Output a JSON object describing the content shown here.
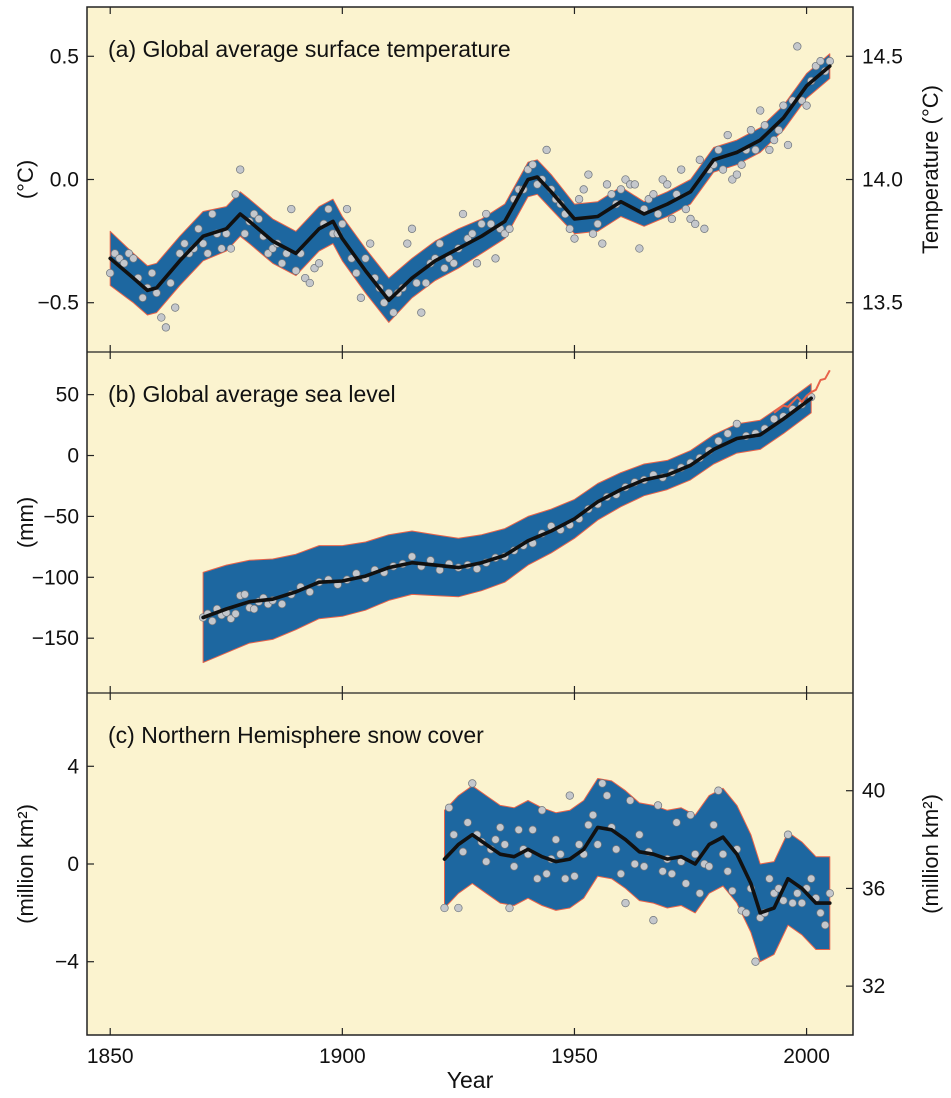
{
  "figure": {
    "xlabel": "Year",
    "x_ticks": [
      1850,
      1900,
      1950,
      2000
    ],
    "xlim": [
      1845,
      2010
    ],
    "colors": {
      "panel_bg": "#fbf3cf",
      "band_fill": "#1d67a0",
      "band_edge": "#e8634a",
      "smooth_line": "#111111",
      "points": "#c4c7cc",
      "satellite_line": "#e8634a"
    }
  },
  "chart_data": [
    {
      "type": "line",
      "title": "(a) Global average surface temperature",
      "ylabel": "(°C)",
      "ylabel_right": "Temperature (°C)",
      "ylim": [
        -0.7,
        0.7
      ],
      "y_ticks": [
        -0.5,
        0.0,
        0.5
      ],
      "y_tick_labels": [
        "−0.5",
        "0.0",
        "0.5"
      ],
      "right_ticks": [
        13.5,
        14.0,
        14.5
      ],
      "right_tick_labels": [
        "13.5",
        "14.0",
        "14.5"
      ],
      "right_offset": 14.0,
      "smooth_x": [
        1850,
        1855,
        1858,
        1860,
        1865,
        1870,
        1875,
        1878,
        1880,
        1885,
        1890,
        1895,
        1898,
        1900,
        1905,
        1910,
        1915,
        1920,
        1925,
        1930,
        1935,
        1940,
        1942,
        1945,
        1950,
        1955,
        1960,
        1965,
        1970,
        1975,
        1980,
        1985,
        1990,
        1995,
        2000,
        2005
      ],
      "smooth_y": [
        -0.32,
        -0.4,
        -0.45,
        -0.44,
        -0.33,
        -0.23,
        -0.2,
        -0.14,
        -0.17,
        -0.25,
        -0.3,
        -0.2,
        -0.17,
        -0.24,
        -0.37,
        -0.49,
        -0.4,
        -0.33,
        -0.28,
        -0.23,
        -0.17,
        0.0,
        0.01,
        -0.05,
        -0.16,
        -0.15,
        -0.09,
        -0.14,
        -0.1,
        -0.05,
        0.08,
        0.11,
        0.16,
        0.25,
        0.38,
        0.46
      ],
      "band_halfwidth": [
        0.11,
        0.1,
        0.1,
        0.1,
        0.1,
        0.1,
        0.09,
        0.09,
        0.09,
        0.09,
        0.09,
        0.09,
        0.09,
        0.09,
        0.09,
        0.09,
        0.08,
        0.08,
        0.08,
        0.07,
        0.07,
        0.07,
        0.07,
        0.07,
        0.06,
        0.06,
        0.06,
        0.05,
        0.05,
        0.05,
        0.05,
        0.05,
        0.05,
        0.05,
        0.05,
        0.05
      ],
      "points_x": [
        1850,
        1851,
        1852,
        1853,
        1854,
        1855,
        1856,
        1857,
        1858,
        1859,
        1860,
        1861,
        1862,
        1863,
        1864,
        1865,
        1866,
        1867,
        1868,
        1869,
        1870,
        1871,
        1872,
        1873,
        1874,
        1875,
        1876,
        1877,
        1878,
        1879,
        1880,
        1881,
        1882,
        1883,
        1884,
        1885,
        1886,
        1887,
        1888,
        1889,
        1890,
        1891,
        1892,
        1893,
        1894,
        1895,
        1896,
        1897,
        1898,
        1899,
        1900,
        1901,
        1902,
        1903,
        1904,
        1905,
        1906,
        1907,
        1908,
        1909,
        1910,
        1911,
        1912,
        1913,
        1914,
        1915,
        1916,
        1917,
        1918,
        1919,
        1920,
        1921,
        1922,
        1923,
        1924,
        1925,
        1926,
        1927,
        1928,
        1929,
        1930,
        1931,
        1932,
        1933,
        1934,
        1935,
        1936,
        1937,
        1938,
        1939,
        1940,
        1941,
        1942,
        1943,
        1944,
        1945,
        1946,
        1947,
        1948,
        1949,
        1950,
        1951,
        1952,
        1953,
        1954,
        1955,
        1956,
        1957,
        1958,
        1959,
        1960,
        1961,
        1962,
        1963,
        1964,
        1965,
        1966,
        1967,
        1968,
        1969,
        1970,
        1971,
        1972,
        1973,
        1974,
        1975,
        1976,
        1977,
        1978,
        1979,
        1980,
        1981,
        1982,
        1983,
        1984,
        1985,
        1986,
        1987,
        1988,
        1989,
        1990,
        1991,
        1992,
        1993,
        1994,
        1995,
        1996,
        1997,
        1998,
        1999,
        2000,
        2001,
        2002,
        2003,
        2004,
        2005
      ],
      "points_y": [
        -0.38,
        -0.3,
        -0.32,
        -0.34,
        -0.3,
        -0.32,
        -0.4,
        -0.48,
        -0.44,
        -0.38,
        -0.46,
        -0.56,
        -0.6,
        -0.42,
        -0.52,
        -0.3,
        -0.26,
        -0.3,
        -0.28,
        -0.2,
        -0.26,
        -0.3,
        -0.14,
        -0.22,
        -0.28,
        -0.22,
        -0.28,
        -0.06,
        0.04,
        -0.22,
        -0.17,
        -0.14,
        -0.16,
        -0.23,
        -0.3,
        -0.28,
        -0.26,
        -0.34,
        -0.3,
        -0.12,
        -0.37,
        -0.3,
        -0.4,
        -0.42,
        -0.36,
        -0.34,
        -0.18,
        -0.12,
        -0.22,
        -0.22,
        -0.18,
        -0.12,
        -0.32,
        -0.38,
        -0.48,
        -0.32,
        -0.26,
        -0.4,
        -0.44,
        -0.5,
        -0.46,
        -0.54,
        -0.46,
        -0.44,
        -0.26,
        -0.2,
        -0.42,
        -0.54,
        -0.42,
        -0.34,
        -0.32,
        -0.26,
        -0.36,
        -0.32,
        -0.34,
        -0.28,
        -0.14,
        -0.24,
        -0.22,
        -0.34,
        -0.18,
        -0.14,
        -0.18,
        -0.32,
        -0.2,
        -0.22,
        -0.2,
        -0.08,
        -0.04,
        -0.04,
        0.04,
        0.06,
        -0.02,
        0.0,
        0.12,
        -0.04,
        -0.08,
        -0.1,
        -0.14,
        -0.2,
        -0.24,
        -0.08,
        -0.04,
        0.02,
        -0.22,
        -0.18,
        -0.26,
        -0.02,
        -0.06,
        -0.1,
        -0.04,
        0.0,
        -0.02,
        -0.02,
        -0.28,
        -0.12,
        -0.08,
        -0.06,
        -0.14,
        0.0,
        -0.02,
        -0.16,
        -0.06,
        0.04,
        -0.12,
        -0.16,
        -0.18,
        0.08,
        -0.2,
        0.04,
        0.06,
        0.12,
        0.04,
        0.18,
        0.0,
        0.02,
        0.06,
        0.12,
        0.2,
        0.12,
        0.28,
        0.22,
        0.12,
        0.16,
        0.2,
        0.3,
        0.14,
        0.32,
        0.54,
        0.32,
        0.3,
        0.4,
        0.46,
        0.48,
        0.44,
        0.48
      ]
    },
    {
      "type": "line",
      "title": "(b) Global average sea level",
      "ylabel": "(mm)",
      "ylim": [
        -195,
        85
      ],
      "y_ticks": [
        -150,
        -100,
        -50,
        0,
        50
      ],
      "y_tick_labels": [
        "−150",
        "−100",
        "−50",
        "0",
        "50"
      ],
      "smooth_x": [
        1870,
        1875,
        1880,
        1885,
        1890,
        1895,
        1900,
        1905,
        1910,
        1915,
        1920,
        1925,
        1930,
        1935,
        1940,
        1945,
        1950,
        1955,
        1960,
        1965,
        1970,
        1975,
        1980,
        1985,
        1990,
        1995,
        2001
      ],
      "smooth_y": [
        -133,
        -126,
        -120,
        -118,
        -112,
        -104,
        -103,
        -99,
        -92,
        -88,
        -90,
        -92,
        -88,
        -82,
        -70,
        -62,
        -52,
        -38,
        -28,
        -20,
        -16,
        -8,
        5,
        14,
        17,
        30,
        47
      ],
      "band_halfwidth": [
        37,
        36,
        34,
        33,
        31,
        30,
        29,
        28,
        27,
        26,
        25,
        24,
        23,
        22,
        20,
        18,
        16,
        15,
        14,
        13,
        12,
        12,
        12,
        12,
        12,
        12,
        12
      ],
      "satellite_x": [
        1993,
        1994,
        1995,
        1996,
        1997,
        1998,
        1999,
        2000,
        2001,
        2002,
        2003,
        2004,
        2005
      ],
      "satellite_y": [
        35,
        38,
        41,
        40,
        44,
        48,
        44,
        49,
        52,
        54,
        62,
        63,
        70
      ],
      "points_x": [
        1870,
        1871,
        1872,
        1873,
        1874,
        1875,
        1876,
        1877,
        1878,
        1879,
        1880,
        1881,
        1882,
        1883,
        1884,
        1885,
        1887,
        1889,
        1891,
        1893,
        1895,
        1897,
        1899,
        1901,
        1903,
        1905,
        1907,
        1909,
        1911,
        1913,
        1915,
        1917,
        1919,
        1921,
        1923,
        1925,
        1927,
        1929,
        1931,
        1933,
        1935,
        1937,
        1939,
        1941,
        1943,
        1945,
        1947,
        1949,
        1951,
        1953,
        1955,
        1957,
        1959,
        1961,
        1963,
        1965,
        1967,
        1969,
        1971,
        1973,
        1975,
        1977,
        1979,
        1981,
        1983,
        1985,
        1987,
        1989,
        1991,
        1993,
        1995,
        1997,
        1999,
        2001
      ],
      "points_y": [
        -133,
        -130,
        -136,
        -126,
        -131,
        -129,
        -134,
        -130,
        -115,
        -114,
        -125,
        -126,
        -120,
        -117,
        -122,
        -119,
        -122,
        -114,
        -108,
        -112,
        -104,
        -102,
        -106,
        -102,
        -97,
        -101,
        -94,
        -96,
        -91,
        -89,
        -83,
        -91,
        -86,
        -94,
        -89,
        -92,
        -90,
        -93,
        -88,
        -84,
        -83,
        -78,
        -74,
        -72,
        -64,
        -58,
        -61,
        -57,
        -52,
        -44,
        -40,
        -34,
        -32,
        -26,
        -22,
        -20,
        -16,
        -18,
        -14,
        -10,
        -6,
        -2,
        4,
        12,
        18,
        26,
        16,
        18,
        22,
        30,
        32,
        38,
        42,
        48
      ]
    },
    {
      "type": "line",
      "title": "(c) Northern Hemisphere snow cover",
      "ylabel": "(million km²)",
      "ylabel_right": "(million km²)",
      "ylim": [
        -7,
        7
      ],
      "y_ticks": [
        -4,
        0,
        4
      ],
      "y_tick_labels": [
        "−4",
        "0",
        "4"
      ],
      "right_ticks": [
        32,
        36,
        40
      ],
      "right_tick_labels": [
        "32",
        "36",
        "40"
      ],
      "right_offset": 37.0,
      "smooth_x": [
        1922,
        1925,
        1928,
        1931,
        1934,
        1937,
        1940,
        1943,
        1946,
        1949,
        1952,
        1955,
        1958,
        1961,
        1964,
        1967,
        1970,
        1973,
        1976,
        1979,
        1982,
        1985,
        1988,
        1990,
        1993,
        1996,
        1999,
        2002,
        2005
      ],
      "smooth_y": [
        0.2,
        0.8,
        1.2,
        0.8,
        0.4,
        0.3,
        0.6,
        0.3,
        0.1,
        0.2,
        0.6,
        1.5,
        1.4,
        1.0,
        0.5,
        0.4,
        0.2,
        0.3,
        0.0,
        0.8,
        1.1,
        0.4,
        -0.8,
        -2.0,
        -1.8,
        -0.6,
        -1.0,
        -1.6,
        -1.6
      ],
      "band_halfwidth": [
        2.0,
        2.0,
        2.0,
        2.0,
        2.0,
        2.0,
        2.0,
        2.0,
        2.0,
        2.0,
        2.0,
        2.0,
        2.0,
        2.0,
        2.0,
        2.0,
        2.0,
        2.0,
        2.0,
        2.0,
        2.0,
        2.0,
        2.0,
        2.0,
        1.9,
        1.9,
        1.9,
        1.9,
        1.9
      ],
      "points_x": [
        1922,
        1923,
        1924,
        1925,
        1926,
        1927,
        1928,
        1929,
        1930,
        1931,
        1932,
        1933,
        1934,
        1935,
        1936,
        1937,
        1938,
        1939,
        1940,
        1941,
        1942,
        1943,
        1944,
        1945,
        1946,
        1947,
        1948,
        1949,
        1950,
        1951,
        1952,
        1953,
        1954,
        1955,
        1956,
        1957,
        1958,
        1959,
        1960,
        1961,
        1962,
        1963,
        1964,
        1965,
        1966,
        1967,
        1968,
        1969,
        1970,
        1971,
        1972,
        1973,
        1974,
        1975,
        1976,
        1977,
        1978,
        1979,
        1980,
        1981,
        1982,
        1983,
        1984,
        1985,
        1986,
        1987,
        1988,
        1989,
        1990,
        1991,
        1992,
        1993,
        1994,
        1995,
        1996,
        1997,
        1998,
        1999,
        2000,
        2001,
        2002,
        2003,
        2004,
        2005
      ],
      "points_y": [
        -1.8,
        2.3,
        1.2,
        -1.8,
        0.5,
        1.7,
        3.3,
        1.2,
        0.9,
        0.1,
        0.6,
        1.0,
        1.5,
        0.8,
        -1.8,
        -0.1,
        1.4,
        0.6,
        0.4,
        1.4,
        -0.6,
        2.2,
        -0.4,
        0.2,
        1.0,
        0.4,
        -0.6,
        2.8,
        -0.5,
        0.8,
        0.4,
        1.6,
        2.0,
        0.8,
        3.3,
        2.8,
        1.5,
        0.6,
        -0.4,
        -1.6,
        2.6,
        0.0,
        1.2,
        -0.1,
        0.5,
        -2.3,
        2.4,
        -0.3,
        0.2,
        -0.4,
        1.7,
        0.1,
        -0.8,
        2.0,
        0.4,
        -1.2,
        0.0,
        -0.1,
        1.6,
        3.0,
        0.4,
        -0.3,
        -1.1,
        0.6,
        -1.9,
        -2.0,
        -1.0,
        -4.0,
        -2.2,
        -2.0,
        -0.6,
        -1.2,
        -1.0,
        -1.5,
        1.2,
        -1.6,
        -1.2,
        -1.6,
        -1.0,
        -0.6,
        -1.4,
        -2.0,
        -2.5,
        -1.2
      ]
    }
  ]
}
